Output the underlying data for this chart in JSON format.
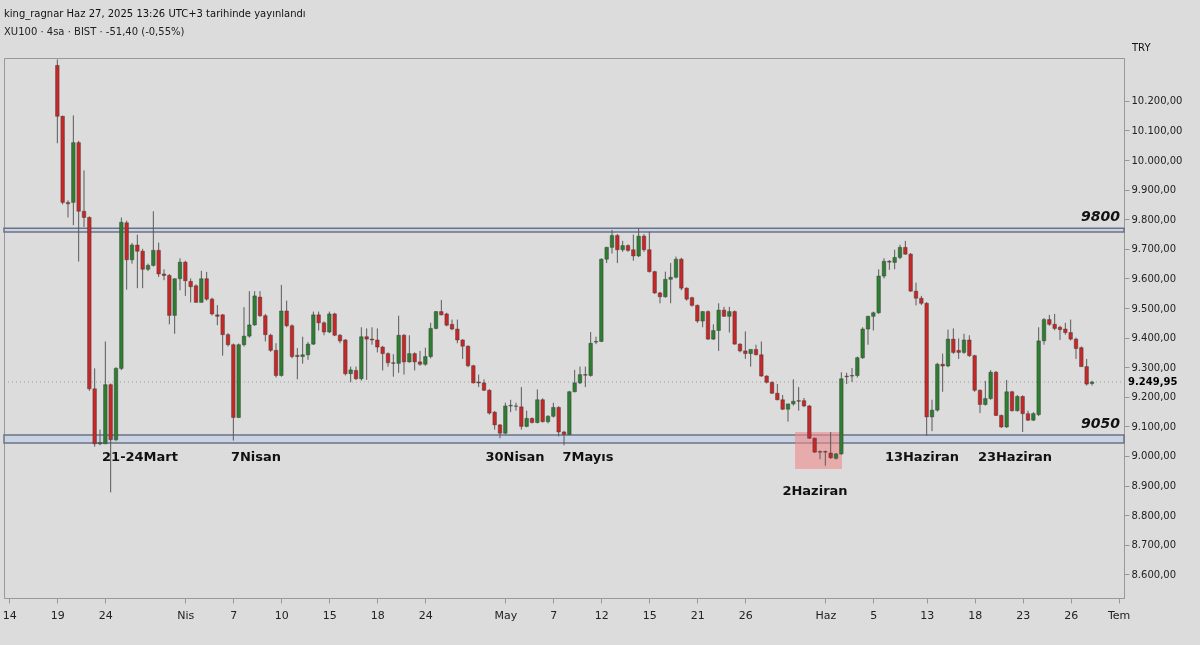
{
  "chart_data": {
    "type": "candlestick",
    "title": "king_ragnar Haz 27, 2025 13:26 UTC+3 tarihinde yayınlandı",
    "subtitle": "XU100 · 4sa · BIST · -51,40 (-0,55%)",
    "categories": [
      "14",
      null,
      null,
      null,
      null,
      null,
      null,
      null,
      null,
      "19",
      null,
      null,
      null,
      null,
      null,
      null,
      null,
      null,
      "24",
      null,
      null,
      null,
      null,
      null,
      null,
      null,
      null,
      null,
      null,
      null,
      null,
      null,
      null,
      "Nis",
      null,
      null,
      null,
      null,
      null,
      null,
      null,
      null,
      "7",
      null,
      null,
      null,
      null,
      null,
      null,
      null,
      null,
      "10",
      null,
      null,
      null,
      null,
      null,
      null,
      null,
      null,
      "15",
      null,
      null,
      null,
      null,
      null,
      null,
      null,
      null,
      "18",
      null,
      null,
      null,
      null,
      null,
      null,
      null,
      null,
      "24",
      null,
      null,
      null,
      null,
      null,
      null,
      null,
      null,
      null,
      null,
      null,
      null,
      null,
      null,
      "May",
      null,
      null,
      null,
      null,
      null,
      null,
      null,
      null,
      "7",
      null,
      null,
      null,
      null,
      null,
      null,
      null,
      null,
      "12",
      null,
      null,
      null,
      null,
      null,
      null,
      null,
      null,
      "15",
      null,
      null,
      null,
      null,
      null,
      null,
      null,
      null,
      "21",
      null,
      null,
      null,
      null,
      null,
      null,
      null,
      null,
      "26",
      null,
      null,
      null,
      null,
      null,
      null,
      null,
      null,
      null,
      null,
      null,
      null,
      null,
      null,
      "Haz",
      null,
      null,
      null,
      null,
      null,
      null,
      null,
      null,
      "5",
      null,
      null,
      null,
      null,
      null,
      null,
      null,
      null,
      null,
      "13",
      null,
      null,
      null,
      null,
      null,
      null,
      null,
      null,
      "18",
      null,
      null,
      null,
      null,
      null,
      null,
      null,
      null,
      "23",
      null,
      null,
      null,
      null,
      null,
      null,
      null,
      null,
      "26",
      null,
      null,
      null,
      null,
      null,
      null,
      null,
      null,
      "Tem"
    ],
    "ylim": [
      8520,
      10345
    ],
    "yticks": [
      {
        "value": 8600,
        "label": "8.600,00"
      },
      {
        "value": 8700,
        "label": "8.700,00"
      },
      {
        "value": 8800,
        "label": "8.800,00"
      },
      {
        "value": 8900,
        "label": "8.900,00"
      },
      {
        "value": 9000,
        "label": "9.000,00"
      },
      {
        "value": 9100,
        "label": "9.100,00"
      },
      {
        "value": 9200,
        "label": "9.200,00"
      },
      {
        "value": 9300,
        "label": "9.300,00"
      },
      {
        "value": 9400,
        "label": "9.400,00"
      },
      {
        "value": 9500,
        "label": "9.500,00"
      },
      {
        "value": 9600,
        "label": "9.600,00"
      },
      {
        "value": 9700,
        "label": "9.700,00"
      },
      {
        "value": 9800,
        "label": "9.800,00"
      },
      {
        "value": 9900,
        "label": "9.900,00"
      },
      {
        "value": 10000,
        "label": "10.000,00"
      },
      {
        "value": 10100,
        "label": "10.100,00"
      },
      {
        "value": 10200,
        "label": "10.200,00"
      }
    ],
    "bands": [
      {
        "axis": "y",
        "from": 9757,
        "to": 9770,
        "label": "9800",
        "color": "#c9d3e3"
      },
      {
        "axis": "y",
        "from": 9044,
        "to": 9071,
        "label": "9050",
        "color": "#c9d3e3"
      }
    ],
    "ref_lines": [
      {
        "axis": "y",
        "value": 9249.95,
        "label": "9.249,95",
        "line_style": "dotted",
        "color": "#9e9e9e"
      }
    ],
    "annotations": [
      "TRY",
      "21-24Mart",
      "7Nisan",
      "30Nisan",
      "7Mayıs",
      "2Haziran",
      "13Haziran",
      "23Haziran"
    ],
    "colors": [
      null,
      null,
      null,
      null,
      null,
      null,
      null,
      null,
      null,
      "#c62828",
      "#c62828",
      "#c62828",
      "#2e7d32",
      "#c62828",
      "#c62828",
      "#c62828",
      "#c62828",
      "#2e7d32",
      "#2e7d32",
      "#c62828",
      "#2e7d32",
      "#2e7d32",
      "#c62828",
      "#2e7d32",
      "#c62828",
      "#c62828",
      "#2e7d32",
      "#2e7d32",
      "#c62828",
      "#c62828",
      "#c62828",
      "#2e7d32",
      "#2e7d32",
      "#c62828",
      "#c62828",
      "#c62828",
      "#2e7d32",
      "#c62828",
      "#c62828",
      "#c62828",
      "#c62828",
      "#c62828",
      "#c62828",
      "#2e7d32",
      "#2e7d32",
      "#2e7d32",
      "#2e7d32",
      "#c62828",
      "#c62828",
      "#c62828",
      "#c62828",
      "#2e7d32",
      "#c62828",
      "#c62828",
      "#c62828",
      "#2e7d32",
      "#2e7d32",
      "#2e7d32",
      "#c62828",
      "#c62828",
      "#2e7d32",
      "#c62828",
      "#c62828",
      "#c62828",
      "#2e7d32",
      "#c62828",
      "#2e7d32",
      "#c62828",
      "#c62828",
      "#c62828",
      "#c62828",
      "#c62828",
      "#c62828",
      "#2e7d32",
      "#c62828",
      "#2e7d32",
      "#c62828",
      "#c62828",
      "#2e7d32",
      "#2e7d32",
      "#2e7d32",
      "#c62828",
      "#c62828",
      "#c62828",
      "#c62828",
      "#c62828",
      "#c62828",
      "#c62828",
      "#c62828",
      "#c62828",
      "#c62828",
      "#c62828",
      "#c62828",
      "#2e7d32",
      "#2e7d32",
      "#c62828",
      "#c62828",
      "#2e7d32",
      "#c62828",
      "#2e7d32",
      "#c62828",
      "#2e7d32",
      "#2e7d32",
      "#c62828",
      "#c62828",
      "#2e7d32",
      "#2e7d32",
      "#2e7d32",
      "#c62828",
      "#2e7d32",
      "#2e7d32",
      "#2e7d32",
      "#2e7d32",
      "#2e7d32",
      "#c62828",
      "#2e7d32",
      "#c62828",
      "#c62828",
      "#2e7d32",
      "#c62828",
      "#c62828",
      "#c62828",
      "#c62828",
      "#2e7d32",
      "#2e7d32",
      "#2e7d32",
      "#c62828",
      "#c62828",
      "#c62828",
      "#c62828",
      "#2e7d32",
      "#c62828",
      "#2e7d32",
      "#2e7d32",
      "#c62828",
      "#2e7d32",
      "#c62828",
      "#c62828",
      "#c62828",
      "#2e7d32",
      "#c62828",
      "#c62828",
      "#c62828",
      "#c62828",
      "#c62828",
      "#c62828",
      "#2e7d32",
      "#2e7d32",
      "#c62828",
      "#c62828",
      "#c62828",
      "#c62828",
      "#c62828",
      "#c62828",
      "#c62828",
      "#2e7d32",
      "#2e7d32",
      "#c62828",
      "#2e7d32",
      "#2e7d32",
      "#2e7d32",
      "#2e7d32",
      "#2e7d32",
      "#2e7d32",
      "#2e7d32",
      "#c62828",
      "#2e7d32",
      "#2e7d32",
      "#c62828",
      "#c62828",
      "#c62828",
      "#c62828",
      "#c62828",
      "#2e7d32",
      "#2e7d32",
      "#c62828",
      "#2e7d32",
      "#c62828",
      "#c62828",
      "#2e7d32",
      "#c62828",
      "#c62828",
      "#c62828",
      "#2e7d32",
      "#2e7d32",
      "#c62828",
      "#c62828",
      "#2e7d32",
      "#c62828",
      "#2e7d32",
      "#c62828",
      "#c62828",
      "#2e7d32",
      "#2e7d32",
      "#2e7d32",
      "#c62828",
      "#c62828",
      "#c62828",
      "#c62828",
      "#c62828",
      "#c62828",
      "#c62828",
      "#c62828",
      "#2e7d32",
      null,
      null,
      null,
      null,
      null
    ],
    "ohlc": [
      null,
      null,
      null,
      null,
      null,
      null,
      null,
      null,
      null,
      [
        10320,
        10340,
        10057,
        10148
      ],
      [
        10148,
        10150,
        9850,
        9857
      ],
      [
        9857,
        9864,
        9806,
        9852
      ],
      [
        9857,
        10151,
        9780,
        10059
      ],
      [
        10059,
        10065,
        9657,
        9827
      ],
      [
        9827,
        9965,
        9774,
        9806
      ],
      [
        9806,
        9810,
        9220,
        9227
      ],
      [
        9227,
        9296,
        9031,
        9041
      ],
      [
        9041,
        9089,
        9036,
        9045
      ],
      [
        9041,
        9387,
        9041,
        9241
      ],
      [
        9241,
        9245,
        8877,
        9055
      ],
      [
        9055,
        9300,
        9050,
        9296
      ],
      [
        9296,
        9806,
        9290,
        9790
      ],
      [
        9788,
        9795,
        9562,
        9663
      ],
      [
        9663,
        9720,
        9650,
        9713
      ],
      [
        9713,
        9748,
        9567,
        9692
      ],
      [
        9692,
        9700,
        9567,
        9631
      ],
      [
        9631,
        9650,
        9625,
        9644
      ],
      [
        9644,
        9827,
        9640,
        9695
      ],
      [
        9695,
        9721,
        9605,
        9615
      ],
      [
        9615,
        9631,
        9594,
        9610
      ],
      [
        9610,
        9615,
        9445,
        9475
      ],
      [
        9475,
        9600,
        9413,
        9599
      ],
      [
        9599,
        9668,
        9560,
        9655
      ],
      [
        9655,
        9660,
        9541,
        9592
      ],
      [
        9590,
        9600,
        9519,
        9572
      ],
      [
        9575,
        9580,
        9519,
        9519
      ],
      [
        9519,
        9626,
        9519,
        9599
      ],
      [
        9599,
        9622,
        9525,
        9530
      ],
      [
        9530,
        9535,
        9475,
        9480
      ],
      [
        9477,
        9510,
        9442,
        9472
      ],
      [
        9477,
        9480,
        9339,
        9410
      ],
      [
        9410,
        9415,
        9370,
        9376
      ],
      [
        9376,
        9380,
        9052,
        9130
      ],
      [
        9130,
        9380,
        9128,
        9376
      ],
      [
        9376,
        9503,
        9370,
        9405
      ],
      [
        9405,
        9557,
        9400,
        9443
      ],
      [
        9443,
        9557,
        9440,
        9541
      ],
      [
        9537,
        9557,
        9470,
        9474
      ],
      [
        9474,
        9480,
        9387,
        9410
      ],
      [
        9408,
        9413,
        9352,
        9357
      ],
      [
        9357,
        9381,
        9265,
        9272
      ],
      [
        9272,
        9578,
        9268,
        9490
      ],
      [
        9490,
        9525,
        9435,
        9440
      ],
      [
        9440,
        9445,
        9330,
        9336
      ],
      [
        9340,
        9365,
        9259,
        9336
      ],
      [
        9336,
        9403,
        9312,
        9342
      ],
      [
        9342,
        9385,
        9325,
        9378
      ],
      [
        9378,
        9488,
        9375,
        9477
      ],
      [
        9477,
        9488,
        9424,
        9450
      ],
      [
        9450,
        9455,
        9408,
        9419
      ],
      [
        9419,
        9488,
        9415,
        9480
      ],
      [
        9480,
        9484,
        9405,
        9408
      ],
      [
        9408,
        9412,
        9381,
        9389
      ],
      [
        9392,
        9395,
        9272,
        9278
      ],
      [
        9278,
        9302,
        9249,
        9291
      ],
      [
        9289,
        9302,
        9257,
        9261
      ],
      [
        9261,
        9435,
        9255,
        9403
      ],
      [
        9403,
        9431,
        9257,
        9395
      ],
      [
        9395,
        9435,
        9376,
        9392
      ],
      [
        9392,
        9431,
        9350,
        9368
      ],
      [
        9368,
        9372,
        9289,
        9346
      ],
      [
        9346,
        9350,
        9302,
        9315
      ],
      [
        9315,
        9344,
        9268,
        9313
      ],
      [
        9313,
        9474,
        9281,
        9408
      ],
      [
        9408,
        9412,
        9275,
        9318
      ],
      [
        9318,
        9408,
        9315,
        9346
      ],
      [
        9346,
        9350,
        9289,
        9318
      ],
      [
        9318,
        9355,
        9305,
        9310
      ],
      [
        9310,
        9366,
        9305,
        9336
      ],
      [
        9336,
        9450,
        9330,
        9431
      ],
      [
        9431,
        9490,
        9428,
        9488
      ],
      [
        9488,
        9527,
        9475,
        9477
      ],
      [
        9480,
        9484,
        9438,
        9442
      ],
      [
        9445,
        9461,
        9425,
        9429
      ],
      [
        9429,
        9461,
        9381,
        9392
      ],
      [
        9392,
        9395,
        9328,
        9371
      ],
      [
        9371,
        9374,
        9300,
        9305
      ],
      [
        9305,
        9308,
        9245,
        9247
      ],
      [
        9250,
        9275,
        9233,
        9247
      ],
      [
        9247,
        9259,
        9220,
        9222
      ],
      [
        9222,
        9226,
        9140,
        9145
      ],
      [
        9148,
        9152,
        9089,
        9105
      ],
      [
        9105,
        9108,
        9060,
        9077
      ],
      [
        9077,
        9180,
        9073,
        9169
      ],
      [
        9169,
        9190,
        9148,
        9171
      ],
      [
        9169,
        9180,
        9153,
        9168
      ],
      [
        9166,
        9233,
        9089,
        9100
      ],
      [
        9100,
        9153,
        9097,
        9127
      ],
      [
        9127,
        9130,
        9110,
        9113
      ],
      [
        9113,
        9225,
        9110,
        9190
      ],
      [
        9190,
        9195,
        9113,
        9116
      ],
      [
        9116,
        9138,
        9110,
        9134
      ],
      [
        9134,
        9180,
        9130,
        9164
      ],
      [
        9164,
        9168,
        9066,
        9081
      ],
      [
        9081,
        9085,
        9036,
        9073
      ],
      [
        9073,
        9220,
        9070,
        9217
      ],
      [
        9217,
        9291,
        9215,
        9247
      ],
      [
        9247,
        9302,
        9243,
        9275
      ],
      [
        9275,
        9302,
        9233,
        9273
      ],
      [
        9272,
        9419,
        9268,
        9381
      ],
      [
        9385,
        9403,
        9378,
        9387
      ],
      [
        9387,
        9668,
        9385,
        9665
      ],
      [
        9665,
        9707,
        9652,
        9705
      ],
      [
        9705,
        9764,
        9684,
        9745
      ],
      [
        9745,
        9750,
        9652,
        9697
      ],
      [
        9697,
        9727,
        9690,
        9711
      ],
      [
        9711,
        9715,
        9690,
        9695
      ],
      [
        9697,
        9748,
        9660,
        9676
      ],
      [
        9676,
        9769,
        9672,
        9743
      ],
      [
        9743,
        9750,
        9690,
        9697
      ],
      [
        9697,
        9758,
        9620,
        9623
      ],
      [
        9623,
        9626,
        9548,
        9551
      ],
      [
        9551,
        9555,
        9516,
        9538
      ],
      [
        9538,
        9623,
        9535,
        9597
      ],
      [
        9597,
        9652,
        9516,
        9604
      ],
      [
        9604,
        9674,
        9600,
        9665
      ],
      [
        9665,
        9670,
        9560,
        9567
      ],
      [
        9567,
        9570,
        9525,
        9530
      ],
      [
        9535,
        9538,
        9505,
        9509
      ],
      [
        9509,
        9512,
        9450,
        9456
      ],
      [
        9456,
        9490,
        9435,
        9488
      ],
      [
        9488,
        9492,
        9392,
        9395
      ],
      [
        9395,
        9445,
        9392,
        9424
      ],
      [
        9424,
        9516,
        9355,
        9493
      ],
      [
        9493,
        9504,
        9470,
        9472
      ],
      [
        9472,
        9504,
        9417,
        9488
      ],
      [
        9488,
        9492,
        9376,
        9378
      ],
      [
        9378,
        9381,
        9350,
        9355
      ],
      [
        9355,
        9421,
        9328,
        9346
      ],
      [
        9346,
        9360,
        9302,
        9360
      ],
      [
        9360,
        9376,
        9340,
        9342
      ],
      [
        9342,
        9387,
        9268,
        9270
      ],
      [
        9270,
        9273,
        9245,
        9249
      ],
      [
        9249,
        9252,
        9210,
        9212
      ],
      [
        9212,
        9243,
        9188,
        9190
      ],
      [
        9190,
        9206,
        9155,
        9158
      ],
      [
        9158,
        9176,
        9116,
        9176
      ],
      [
        9176,
        9259,
        9170,
        9185
      ],
      [
        9187,
        9233,
        9153,
        9185
      ],
      [
        9187,
        9196,
        9165,
        9169
      ],
      [
        9169,
        9172,
        9058,
        9060
      ],
      [
        9060,
        9062,
        9010,
        9013
      ],
      [
        9015,
        9018,
        8989,
        9013
      ],
      [
        9015,
        9018,
        8967,
        9013
      ],
      [
        9010,
        9081,
        8990,
        8994
      ],
      [
        8992,
        9010,
        8988,
        9007
      ],
      [
        9007,
        9283,
        9004,
        9261
      ],
      [
        9270,
        9281,
        9243,
        9268
      ],
      [
        9270,
        9297,
        9250,
        9272
      ],
      [
        9272,
        9336,
        9265,
        9332
      ],
      [
        9332,
        9435,
        9328,
        9429
      ],
      [
        9429,
        9474,
        9376,
        9472
      ],
      [
        9472,
        9488,
        9424,
        9484
      ],
      [
        9484,
        9631,
        9480,
        9608
      ],
      [
        9608,
        9668,
        9600,
        9658
      ],
      [
        9658,
        9662,
        9629,
        9655
      ],
      [
        9654,
        9697,
        9631,
        9671
      ],
      [
        9671,
        9714,
        9665,
        9705
      ],
      [
        9705,
        9727,
        9680,
        9682
      ],
      [
        9682,
        9686,
        9555,
        9557
      ],
      [
        9557,
        9586,
        9509,
        9533
      ],
      [
        9533,
        9541,
        9510,
        9516
      ],
      [
        9516,
        9520,
        9068,
        9132
      ],
      [
        9132,
        9190,
        9084,
        9155
      ],
      [
        9155,
        9315,
        9150,
        9310
      ],
      [
        9310,
        9346,
        9217,
        9304
      ],
      [
        9304,
        9427,
        9300,
        9395
      ],
      [
        9395,
        9431,
        9345,
        9350
      ],
      [
        9357,
        9397,
        9328,
        9350
      ],
      [
        9350,
        9413,
        9345,
        9392
      ],
      [
        9392,
        9408,
        9335,
        9339
      ],
      [
        9339,
        9342,
        9217,
        9222
      ],
      [
        9222,
        9225,
        9145,
        9174
      ],
      [
        9174,
        9254,
        9170,
        9194
      ],
      [
        9194,
        9290,
        9190,
        9283
      ],
      [
        9283,
        9287,
        9135,
        9137
      ],
      [
        9137,
        9140,
        9095,
        9098
      ],
      [
        9098,
        9257,
        9095,
        9217
      ],
      [
        9217,
        9220,
        9150,
        9153
      ],
      [
        9153,
        9206,
        9150,
        9201
      ],
      [
        9201,
        9205,
        9081,
        9143
      ],
      [
        9143,
        9153,
        9118,
        9121
      ],
      [
        9121,
        9148,
        9118,
        9143
      ],
      [
        9140,
        9435,
        9135,
        9389
      ],
      [
        9389,
        9466,
        9376,
        9461
      ],
      [
        9461,
        9477,
        9440,
        9445
      ],
      [
        9445,
        9480,
        9425,
        9431
      ],
      [
        9435,
        9440,
        9392,
        9427
      ],
      [
        9429,
        9450,
        9410,
        9417
      ],
      [
        9417,
        9461,
        9390,
        9395
      ],
      [
        9395,
        9400,
        9328,
        9363
      ],
      [
        9366,
        9370,
        9302,
        9302
      ],
      [
        9302,
        9328,
        9238,
        9243
      ],
      [
        9245,
        9254,
        9238,
        9249.95
      ],
      null,
      null,
      null,
      null,
      null
    ]
  }
}
